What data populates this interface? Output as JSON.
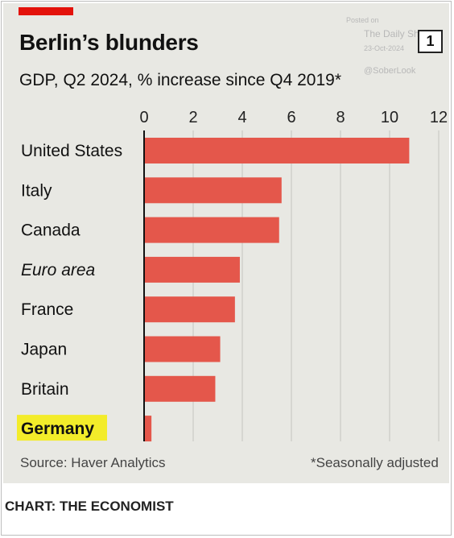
{
  "header": {
    "title": "Berlin’s blunders",
    "subtitle": "GDP, Q2 2024, % increase since Q4 2019*",
    "badge": "1"
  },
  "watermark": {
    "posted": "Posted on",
    "source": "The Daily Shot",
    "date": "23-Oct-2024",
    "handle": "@SoberLook"
  },
  "footer": {
    "source": "Source: Haver Analytics",
    "footnote": "*Seasonally adjusted",
    "credit": "CHART: THE ECONOMIST"
  },
  "colors": {
    "accent": "#e3120b",
    "bar": "#e4574b",
    "background": "#e8e8e3",
    "highlight": "#f3ec2a"
  },
  "chart_data": {
    "type": "bar",
    "orientation": "horizontal",
    "title": "Berlin’s blunders",
    "subtitle": "GDP, Q2 2024, % increase since Q4 2019*",
    "categories": [
      "United States",
      "Italy",
      "Canada",
      "Euro area",
      "France",
      "Japan",
      "Britain",
      "Germany"
    ],
    "values": [
      10.8,
      5.6,
      5.5,
      3.9,
      3.7,
      3.1,
      2.9,
      0.3
    ],
    "italic_categories": [
      "Euro area"
    ],
    "highlighted_categories": [
      "Germany"
    ],
    "xlim": [
      0,
      12
    ],
    "xticks": [
      0,
      2,
      4,
      6,
      8,
      10,
      12
    ],
    "tick_labels": [
      "0",
      "2",
      "4",
      "6",
      "8",
      "10",
      "12"
    ],
    "axis_position": "top",
    "grid": true
  }
}
